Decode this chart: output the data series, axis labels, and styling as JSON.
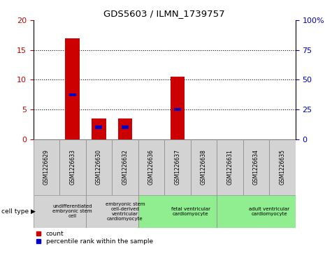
{
  "title": "GDS5603 / ILMN_1739757",
  "samples": [
    "GSM1226629",
    "GSM1226633",
    "GSM1226630",
    "GSM1226632",
    "GSM1226636",
    "GSM1226637",
    "GSM1226638",
    "GSM1226631",
    "GSM1226634",
    "GSM1226635"
  ],
  "count_values": [
    0,
    17,
    3.5,
    3.5,
    0,
    10.5,
    0,
    0,
    0,
    0
  ],
  "percentile_values": [
    0,
    37.5,
    10.0,
    10.0,
    0,
    25.0,
    0,
    0,
    0,
    0
  ],
  "ylim_left": [
    0,
    20
  ],
  "ylim_right": [
    0,
    100
  ],
  "yticks_left": [
    0,
    5,
    10,
    15,
    20
  ],
  "yticks_right": [
    0,
    25,
    50,
    75,
    100
  ],
  "cell_types": [
    {
      "label": "undifferentiated\nembryonic stem\ncell",
      "start": 0,
      "end": 2,
      "color": "#d3d3d3"
    },
    {
      "label": "embryonic stem\ncell-derived\nventricular\ncardiomyocyte",
      "start": 2,
      "end": 4,
      "color": "#d3d3d3"
    },
    {
      "label": "fetal ventricular\ncardiomyocyte",
      "start": 4,
      "end": 7,
      "color": "#90ee90"
    },
    {
      "label": "adult ventricular\ncardiomyocyte",
      "start": 7,
      "end": 10,
      "color": "#90ee90"
    }
  ],
  "count_color": "#cc0000",
  "percentile_color": "#0000cc",
  "tick_label_color_left": "#cc0000",
  "tick_label_color_right": "#0000cc",
  "background_color": "#ffffff",
  "sample_box_color": "#d3d3d3",
  "grid_dotted_ticks": [
    5,
    10,
    15
  ],
  "bar_width": 0.55
}
